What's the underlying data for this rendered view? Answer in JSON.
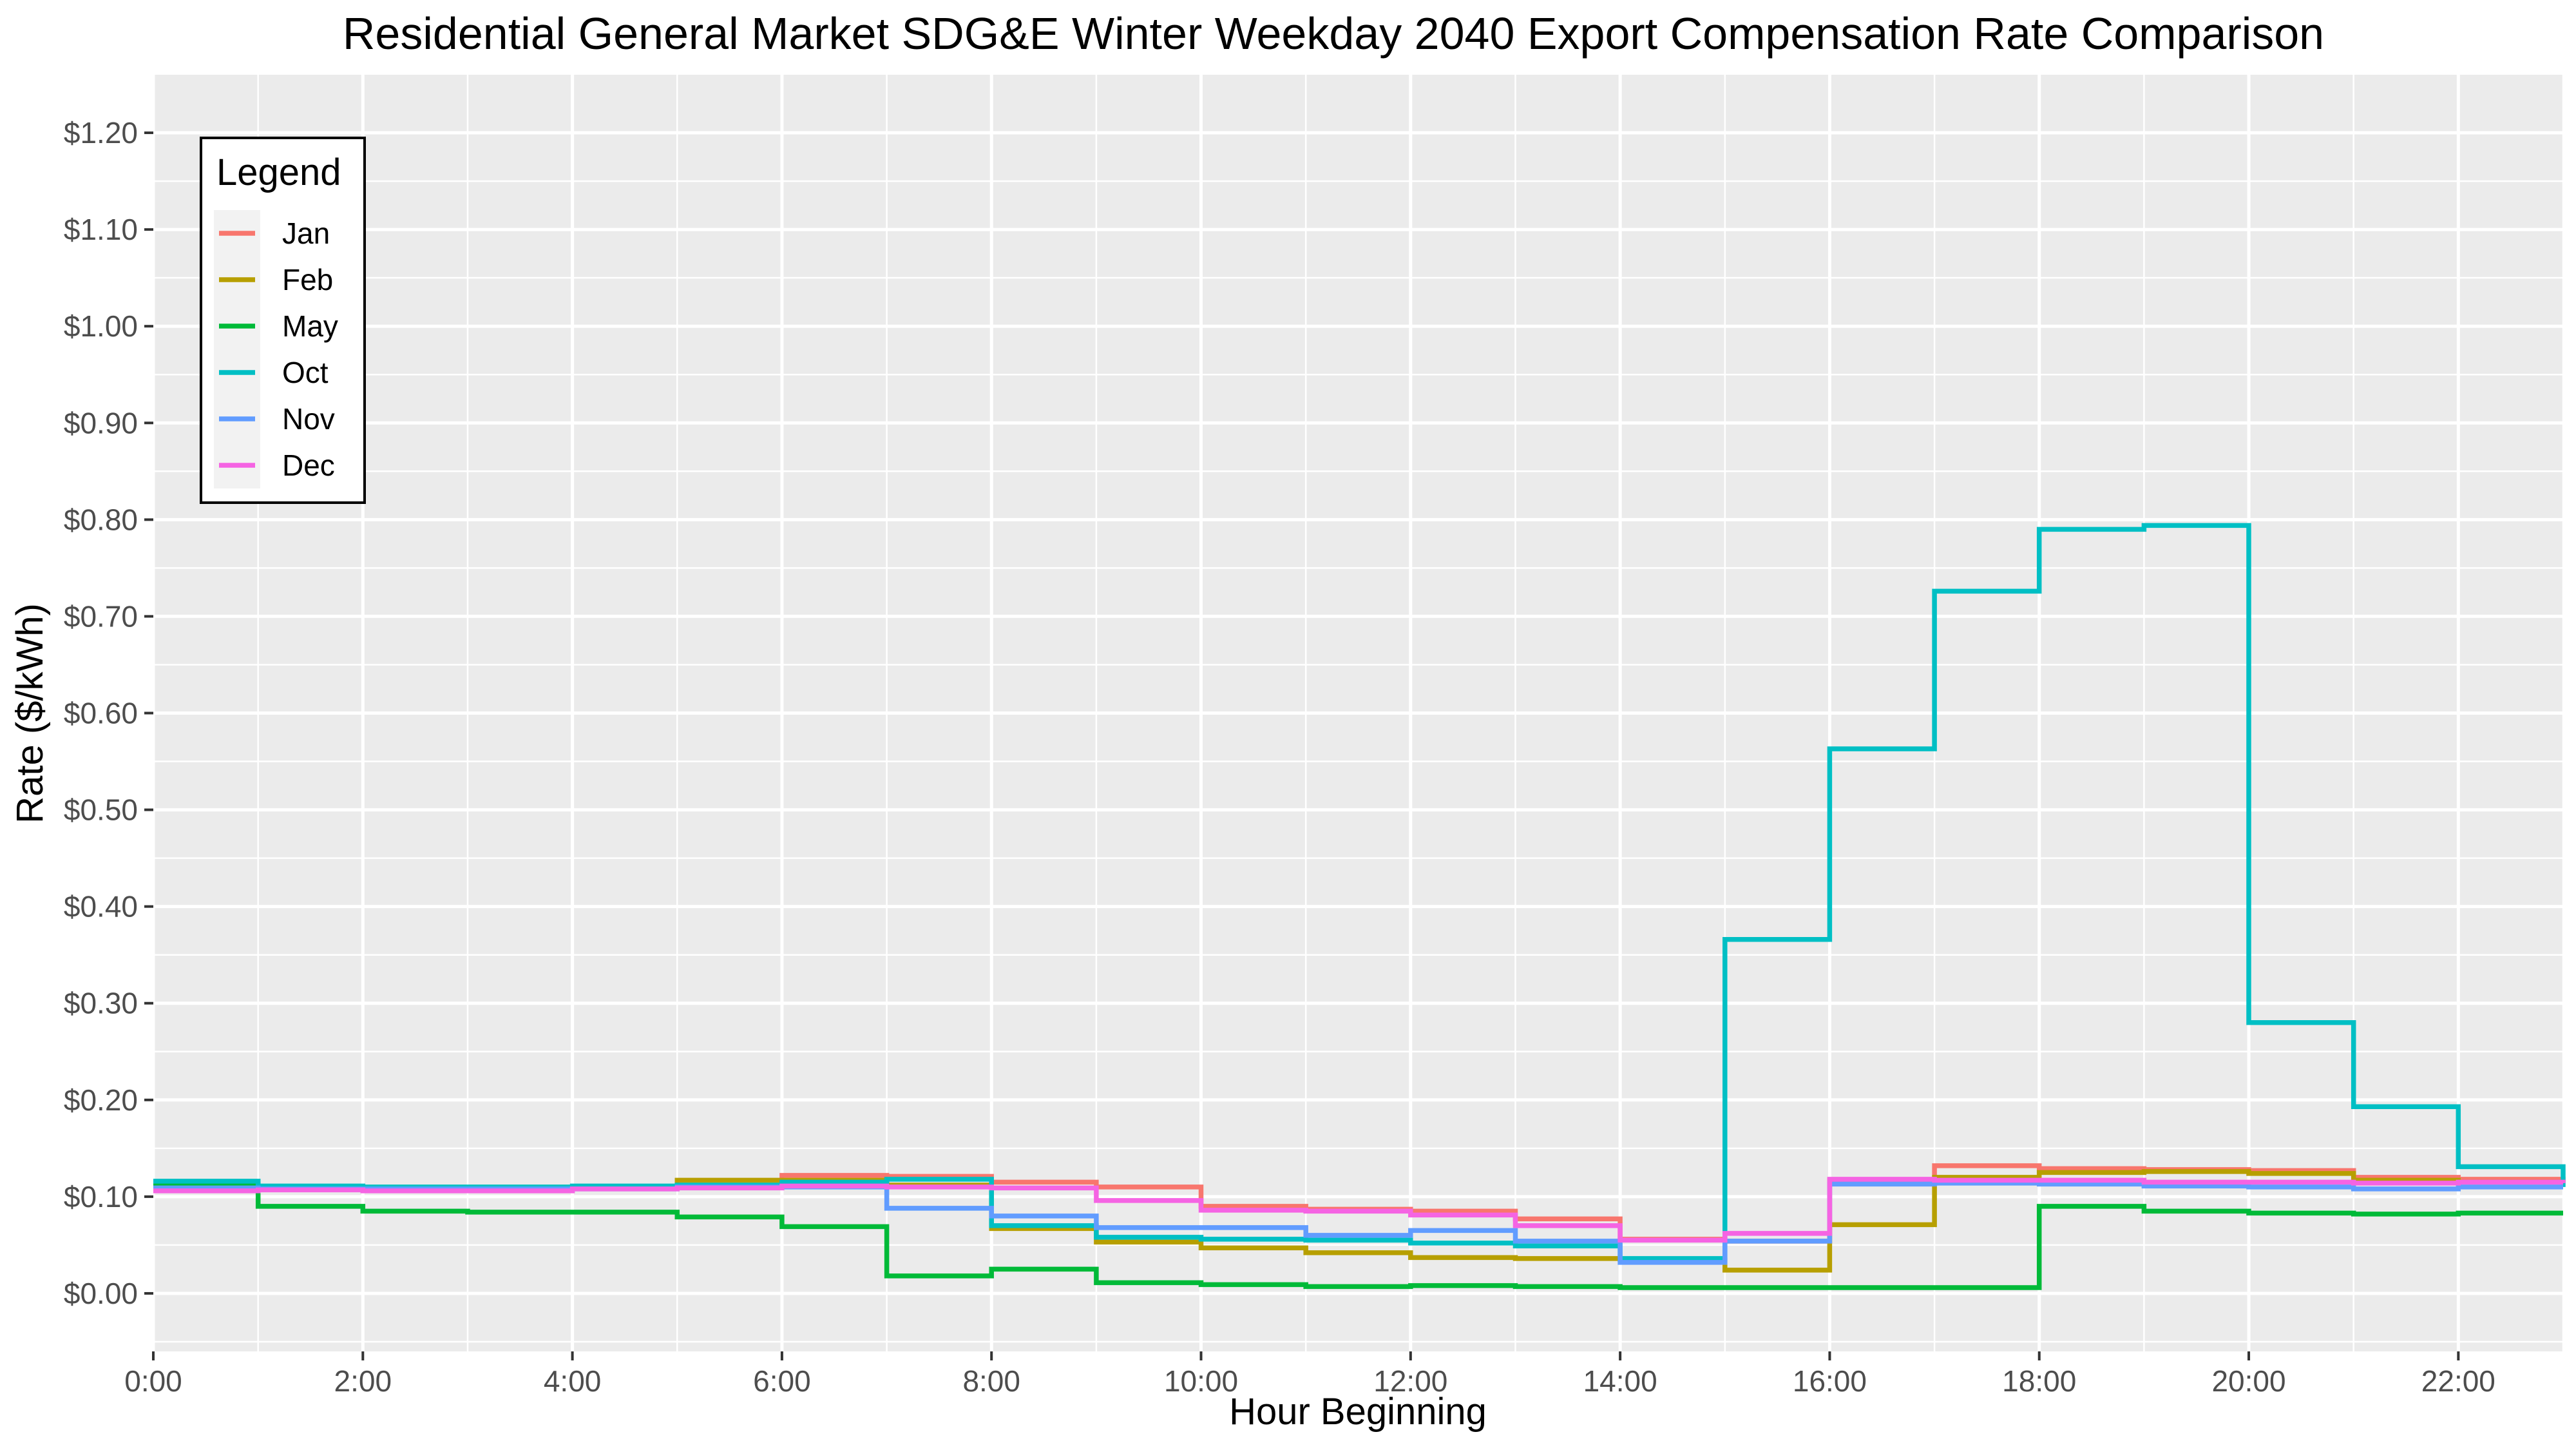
{
  "chart_data": {
    "type": "line",
    "step": "hv",
    "title": "Residential General Market SDG&E Winter Weekday 2040 Export Compensation Rate Comparison",
    "xlabel": "Hour Beginning",
    "ylabel": "Rate ($/kWh)",
    "x": [
      0,
      1,
      2,
      3,
      4,
      5,
      6,
      7,
      8,
      9,
      10,
      11,
      12,
      13,
      14,
      15,
      16,
      17,
      18,
      19,
      20,
      21,
      22,
      23
    ],
    "x_tick_values": [
      0,
      2,
      4,
      6,
      8,
      10,
      12,
      14,
      16,
      18,
      20,
      22
    ],
    "x_tick_labels": [
      "0:00",
      "2:00",
      "4:00",
      "6:00",
      "8:00",
      "10:00",
      "12:00",
      "14:00",
      "16:00",
      "18:00",
      "20:00",
      "22:00"
    ],
    "y_tick_values": [
      0,
      0.1,
      0.2,
      0.3,
      0.4,
      0.5,
      0.6,
      0.7,
      0.8,
      0.9,
      1.0,
      1.1,
      1.2
    ],
    "y_tick_labels": [
      "$0.00",
      "$0.10",
      "$0.20",
      "$0.30",
      "$0.40",
      "$0.50",
      "$0.60",
      "$0.70",
      "$0.80",
      "$0.90",
      "$1.00",
      "$1.10",
      "$1.20"
    ],
    "xlim": [
      0,
      23
    ],
    "ylim": [
      -0.06,
      1.26
    ],
    "grid": true,
    "legend": {
      "title": "Legend",
      "placement": "top-left"
    },
    "series": [
      {
        "name": "Jan",
        "color": "#F8766D",
        "values": [
          0.112,
          0.11,
          0.109,
          0.109,
          0.11,
          0.111,
          0.122,
          0.121,
          0.115,
          0.11,
          0.09,
          0.087,
          0.085,
          0.077,
          0.056,
          0.054,
          0.117,
          0.132,
          0.129,
          0.128,
          0.127,
          0.12,
          0.118,
          0.117
        ]
      },
      {
        "name": "Feb",
        "color": "#B79F00",
        "values": [
          0.111,
          0.109,
          0.108,
          0.108,
          0.109,
          0.117,
          0.117,
          0.112,
          0.067,
          0.053,
          0.047,
          0.042,
          0.037,
          0.036,
          0.035,
          0.024,
          0.071,
          0.12,
          0.125,
          0.126,
          0.124,
          0.117,
          0.115,
          0.114
        ]
      },
      {
        "name": "May",
        "color": "#00BA38",
        "values": [
          0.113,
          0.09,
          0.085,
          0.084,
          0.084,
          0.079,
          0.069,
          0.018,
          0.025,
          0.011,
          0.009,
          0.007,
          0.008,
          0.007,
          0.006,
          0.006,
          0.006,
          0.006,
          0.09,
          0.085,
          0.083,
          0.082,
          0.083,
          0.083
        ]
      },
      {
        "name": "Oct",
        "color": "#00BFC4",
        "values": [
          0.116,
          0.111,
          0.11,
          0.11,
          0.111,
          0.112,
          0.115,
          0.118,
          0.07,
          0.058,
          0.056,
          0.055,
          0.052,
          0.049,
          0.036,
          0.366,
          0.563,
          0.726,
          0.79,
          0.794,
          0.28,
          0.193,
          0.131,
          0.11
        ]
      },
      {
        "name": "Nov",
        "color": "#619CFF",
        "values": [
          0.109,
          0.108,
          0.108,
          0.108,
          0.108,
          0.11,
          0.11,
          0.088,
          0.08,
          0.068,
          0.068,
          0.06,
          0.065,
          0.054,
          0.032,
          0.054,
          0.113,
          0.114,
          0.113,
          0.111,
          0.11,
          0.108,
          0.11,
          0.11
        ]
      },
      {
        "name": "Dec",
        "color": "#F564E3",
        "values": [
          0.106,
          0.107,
          0.106,
          0.106,
          0.108,
          0.109,
          0.111,
          0.11,
          0.109,
          0.096,
          0.086,
          0.085,
          0.081,
          0.07,
          0.055,
          0.062,
          0.118,
          0.117,
          0.117,
          0.115,
          0.115,
          0.114,
          0.115,
          0.114
        ]
      }
    ]
  }
}
